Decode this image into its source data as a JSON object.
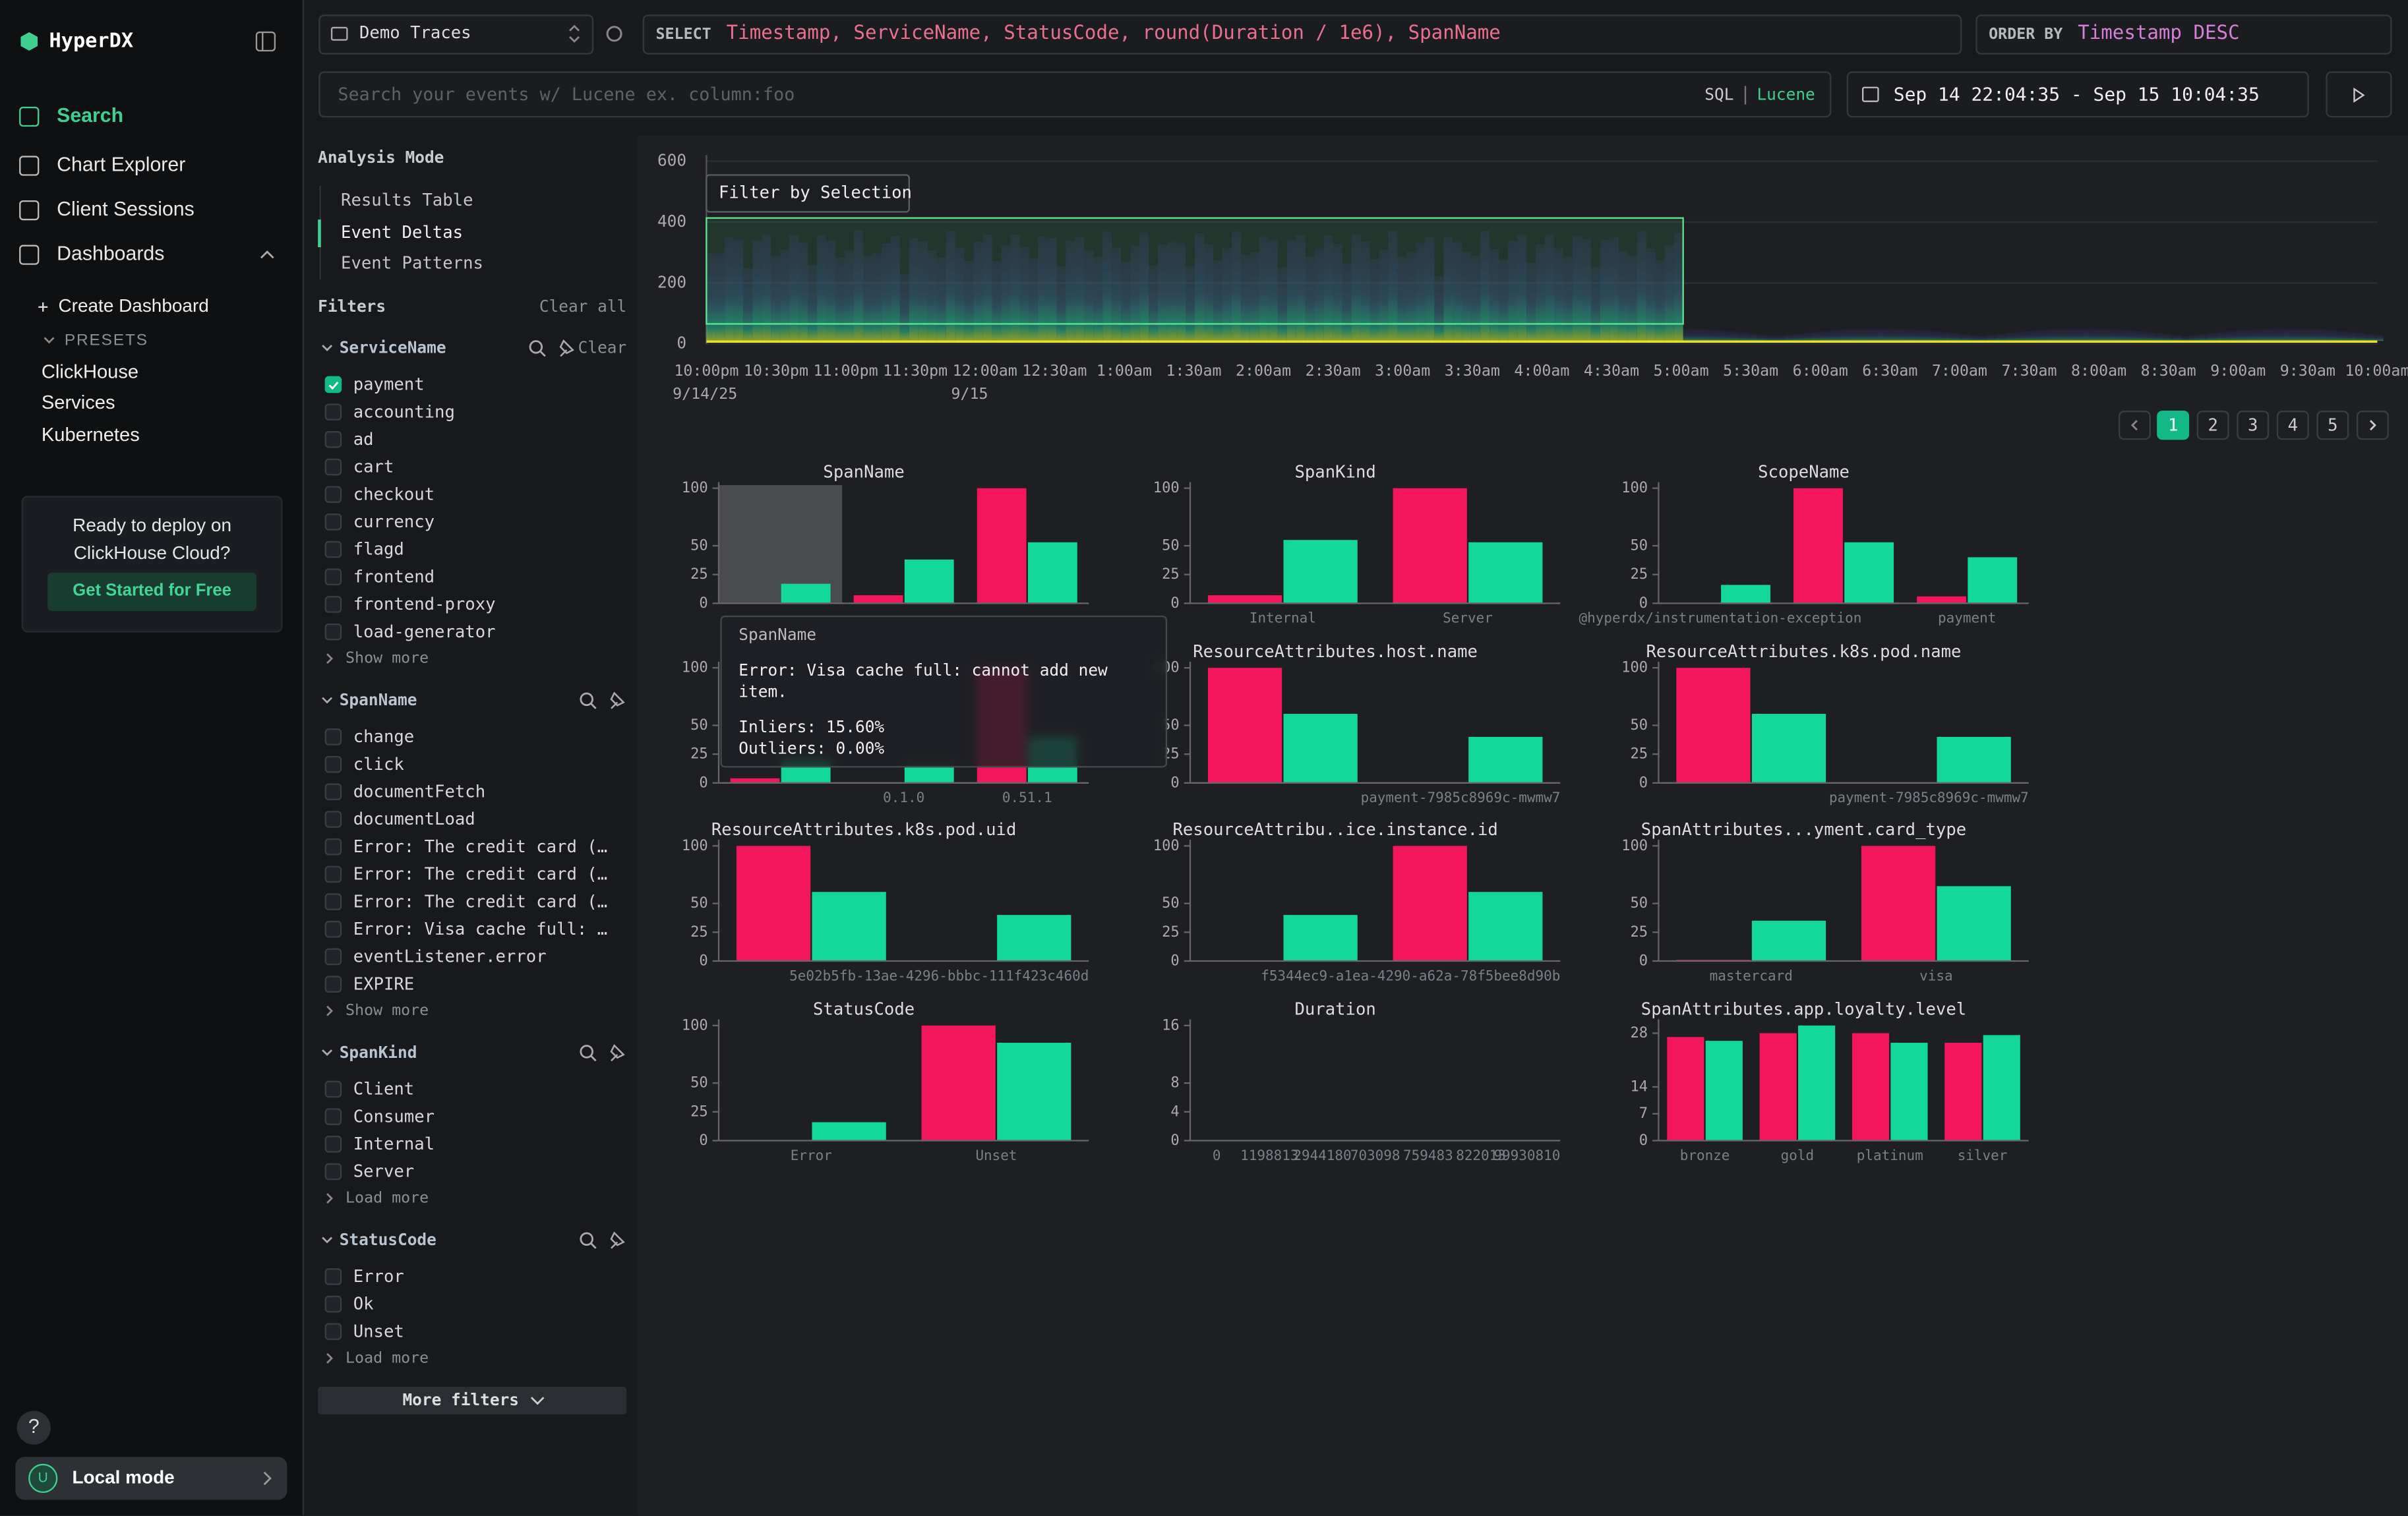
{
  "sidebar": {
    "brand": "HyperDX",
    "nav": [
      "Search",
      "Chart Explorer",
      "Client Sessions",
      "Dashboards"
    ],
    "active_nav": 0,
    "create_dashboard": "Create Dashboard",
    "presets_heading": "PRESETS",
    "presets": [
      "ClickHouse",
      "Services",
      "Kubernetes"
    ],
    "promo_text": "Ready to deploy on ClickHouse Cloud?",
    "promo_button": "Get Started for Free",
    "help": "?",
    "user_initial": "U",
    "user_label": "Local mode"
  },
  "query": {
    "source": "Demo Traces",
    "select_keyword": "SELECT",
    "select_expression": "Timestamp, ServiceName, StatusCode, round(Duration / 1e6), SpanName",
    "order_keyword": "ORDER BY",
    "order_expression": "Timestamp DESC",
    "search_placeholder": "Search your events w/ Lucene ex. column:foo",
    "query_languages": [
      "SQL",
      "Lucene"
    ],
    "active_language": 1,
    "time_range": "Sep 14 22:04:35 - Sep 15 10:04:35"
  },
  "analysis": {
    "heading": "Analysis Mode",
    "modes": [
      "Results Table",
      "Event Deltas",
      "Event Patterns"
    ],
    "active_mode": 1
  },
  "filters": {
    "heading": "Filters",
    "clear_all": "Clear all",
    "more_filters": "More filters",
    "groups": [
      {
        "name": "ServiceName",
        "clear": "Clear",
        "checked": [
          0
        ],
        "items": [
          "payment",
          "accounting",
          "ad",
          "cart",
          "checkout",
          "currency",
          "flagd",
          "frontend",
          "frontend-proxy",
          "load-generator"
        ],
        "more": "Show more"
      },
      {
        "name": "SpanName",
        "items": [
          "change",
          "click",
          "documentFetch",
          "documentLoad",
          "Error: The credit card (…",
          "Error: The credit card (…",
          "Error: The credit card (…",
          "Error: Visa cache full: …",
          "eventListener.error",
          "EXPIRE"
        ],
        "more": "Show more"
      },
      {
        "name": "SpanKind",
        "items": [
          "Client",
          "Consumer",
          "Internal",
          "Server"
        ],
        "more": "Load more"
      },
      {
        "name": "StatusCode",
        "items": [
          "Error",
          "Ok",
          "Unset"
        ],
        "more": "Load more"
      }
    ]
  },
  "chart_data": [
    {
      "type": "heatmap",
      "selection_button": "Filter by Selection",
      "ylim": [
        0,
        600
      ],
      "yticks": [
        0,
        200,
        400,
        600
      ],
      "xtick_labels": [
        "10:00pm",
        "10:30pm",
        "11:00pm",
        "11:30pm",
        "12:00am",
        "12:30am",
        "1:00am",
        "1:30am",
        "2:00am",
        "2:30am",
        "3:00am",
        "3:30am",
        "4:00am",
        "4:30am",
        "5:00am",
        "5:30am",
        "6:00am",
        "6:30am",
        "7:00am",
        "7:30am",
        "8:00am",
        "8:30am",
        "9:00am",
        "9:30am",
        "10:00am"
      ],
      "xtick_dates": [
        "9/14/25",
        null,
        null,
        null,
        "9/15",
        null,
        null,
        null,
        null,
        null,
        null,
        null,
        null,
        null,
        null,
        null,
        null,
        null,
        null,
        null,
        null,
        null,
        null,
        null,
        null
      ]
    },
    {
      "type": "bar",
      "title": "SpanName",
      "categories": [
        null,
        null,
        null
      ],
      "ylim": [
        0,
        100
      ],
      "yticks": [
        0,
        25,
        50,
        100
      ],
      "series": [
        {
          "color": "#f3165c",
          "values": [
            0,
            7,
            100
          ]
        },
        {
          "color": "#14d89a",
          "values": [
            17,
            38,
            53
          ]
        }
      ]
    },
    {
      "type": "bar",
      "title": "SpanKind",
      "categories": [
        "Internal",
        "Server"
      ],
      "ylim": [
        0,
        100
      ],
      "yticks": [
        0,
        25,
        50,
        100
      ],
      "series": [
        {
          "color": "#f3165c",
          "values": [
            7,
            100
          ]
        },
        {
          "color": "#14d89a",
          "values": [
            55,
            53
          ]
        }
      ]
    },
    {
      "type": "bar",
      "title": "ScopeName",
      "categories": [
        "@hyperdx/instrumentation-exception",
        null,
        "payment"
      ],
      "ylim": [
        0,
        100
      ],
      "yticks": [
        0,
        25,
        50,
        100
      ],
      "series": [
        {
          "color": "#f3165c",
          "values": [
            0,
            100,
            6
          ]
        },
        {
          "color": "#14d89a",
          "values": [
            16,
            53,
            40
          ]
        }
      ]
    },
    {
      "type": "bar",
      "categories": [
        null,
        "0.1.0",
        "0.51.1"
      ],
      "ylim": [
        0,
        100
      ],
      "yticks": [
        0,
        25,
        50,
        100
      ],
      "series": [
        {
          "color": "#f3165c",
          "values": [
            4,
            0,
            100
          ]
        },
        {
          "color": "#14d89a",
          "values": [
            20,
            15,
            40
          ]
        }
      ]
    },
    {
      "type": "bar",
      "title": "ResourceAttributes.host.name",
      "categories": [
        null,
        "payment-7985c8969c-mwmw7"
      ],
      "ylim": [
        0,
        100
      ],
      "yticks": [
        0,
        25,
        50,
        100
      ],
      "series": [
        {
          "color": "#f3165c",
          "values": [
            100,
            0
          ]
        },
        {
          "color": "#14d89a",
          "values": [
            60,
            40
          ]
        }
      ]
    },
    {
      "type": "bar",
      "title": "ResourceAttributes.k8s.pod.name",
      "categories": [
        null,
        "payment-7985c8969c-mwmw7"
      ],
      "ylim": [
        0,
        100
      ],
      "yticks": [
        0,
        25,
        50,
        100
      ],
      "series": [
        {
          "color": "#f3165c",
          "values": [
            100,
            0
          ]
        },
        {
          "color": "#14d89a",
          "values": [
            60,
            40
          ]
        }
      ]
    },
    {
      "type": "bar",
      "title": "ResourceAttributes.k8s.pod.uid",
      "categories": [
        null,
        "5e02b5fb-13ae-4296-bbbc-111f423c460d"
      ],
      "ylim": [
        0,
        100
      ],
      "yticks": [
        0,
        25,
        50,
        100
      ],
      "series": [
        {
          "color": "#f3165c",
          "values": [
            100,
            0
          ]
        },
        {
          "color": "#14d89a",
          "values": [
            60,
            40
          ]
        }
      ]
    },
    {
      "type": "bar",
      "title": "ResourceAttribu..ice.instance.id",
      "categories": [
        null,
        "f5344ec9-a1ea-4290-a62a-78f5bee8d90b"
      ],
      "ylim": [
        0,
        100
      ],
      "yticks": [
        0,
        25,
        50,
        100
      ],
      "series": [
        {
          "color": "#f3165c",
          "values": [
            0,
            100
          ]
        },
        {
          "color": "#14d89a",
          "values": [
            40,
            60
          ]
        }
      ]
    },
    {
      "type": "bar",
      "title": "SpanAttributes...yment.card_type",
      "categories": [
        "mastercard",
        "visa"
      ],
      "ylim": [
        0,
        100
      ],
      "yticks": [
        0,
        25,
        50,
        100
      ],
      "series": [
        {
          "color": "#f3165c",
          "values": [
            1,
            100
          ]
        },
        {
          "color": "#14d89a",
          "values": [
            35,
            65
          ]
        }
      ]
    },
    {
      "type": "bar",
      "title": "StatusCode",
      "categories": [
        "Error",
        "Unset"
      ],
      "ylim": [
        0,
        100
      ],
      "yticks": [
        0,
        25,
        50,
        100
      ],
      "series": [
        {
          "color": "#f3165c",
          "values": [
            0,
            100
          ]
        },
        {
          "color": "#14d89a",
          "values": [
            16,
            85
          ]
        }
      ]
    },
    {
      "type": "bar",
      "title": "Duration",
      "categories": [
        "0",
        "1198813",
        "2944180",
        "703098",
        "759483",
        "822013",
        "99930810"
      ],
      "ylim": [
        0,
        16
      ],
      "yticks": [
        0,
        4,
        8,
        16
      ],
      "series": [
        {
          "color": "#f3165c",
          "values": [
            0,
            0,
            0,
            0,
            0,
            0,
            0
          ]
        },
        {
          "color": "#14d89a",
          "values": [
            0,
            0,
            0,
            0,
            0,
            0,
            0
          ]
        }
      ]
    },
    {
      "type": "bar",
      "title": "SpanAttributes.app.loyalty.level",
      "categories": [
        "bronze",
        "gold",
        "platinum",
        "silver"
      ],
      "ylim": [
        0,
        30
      ],
      "yticks": [
        0,
        7,
        14,
        28
      ],
      "series": [
        {
          "color": "#f3165c",
          "values": [
            27,
            28,
            28,
            25.5
          ]
        },
        {
          "color": "#14d89a",
          "values": [
            26,
            30,
            25.5,
            27.5
          ]
        }
      ]
    }
  ],
  "pagination": {
    "pages": [
      1,
      2,
      3,
      4,
      5
    ],
    "current": 1
  },
  "tooltip": {
    "title": "SpanName",
    "text": "Error: Visa cache full: cannot add new item.",
    "lines": [
      "Inliers: 15.60%",
      "Outliers: 0.00%"
    ]
  }
}
